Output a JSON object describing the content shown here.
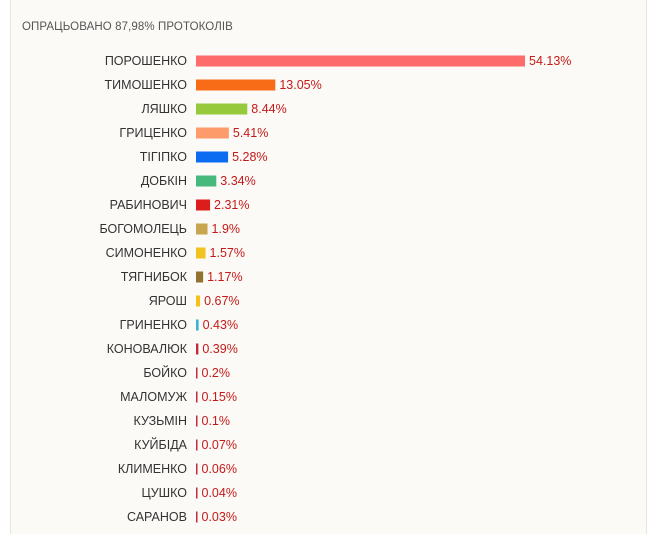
{
  "header": {
    "processed_text": "ОПРАЦЬОВАНО 87,98% ПРОТОКОЛІВ"
  },
  "chart_data": {
    "type": "bar",
    "orientation": "horizontal",
    "title": "",
    "xlabel": "",
    "ylabel": "",
    "categories": [
      "ПОРОШЕНКО",
      "ТИМОШЕНКО",
      "ЛЯШКО",
      "ГРИЦЕНКО",
      "ТІГІПКО",
      "ДОБКІН",
      "РАБИНОВИЧ",
      "БОГОМОЛЕЦЬ",
      "СИМОНЕНКО",
      "ТЯГНИБОК",
      "ЯРОШ",
      "ГРИНЕНКО",
      "КОНОВАЛЮК",
      "БОЙКО",
      "МАЛОМУЖ",
      "КУЗЬМІН",
      "КУЙБІДА",
      "КЛИМЕНКО",
      "ЦУШКО",
      "САРАНОВ"
    ],
    "values": [
      54.13,
      13.05,
      8.44,
      5.41,
      5.28,
      3.34,
      2.31,
      1.9,
      1.57,
      1.17,
      0.67,
      0.43,
      0.39,
      0.2,
      0.15,
      0.1,
      0.07,
      0.06,
      0.04,
      0.03
    ],
    "value_labels": [
      "54.13%",
      "13.05%",
      "8.44%",
      "5.41%",
      "5.28%",
      "3.34%",
      "2.31%",
      "1.9%",
      "1.57%",
      "1.17%",
      "0.67%",
      "0.43%",
      "0.39%",
      "0.2%",
      "0.15%",
      "0.1%",
      "0.07%",
      "0.06%",
      "0.04%",
      "0.03%"
    ],
    "colors": [
      "#fd6b6b",
      "#f96c17",
      "#97c93c",
      "#fd9b6a",
      "#0b6cf1",
      "#47b97d",
      "#dd1c1c",
      "#c8a650",
      "#f2c320",
      "#93712e",
      "#f6c119",
      "#37b4d4",
      "#c42b3a",
      "#c42b3a",
      "#c42b3a",
      "#c42b3a",
      "#c42b3a",
      "#c42b3a",
      "#c42b3a",
      "#c42b3a"
    ],
    "grid": false,
    "legend": "none"
  }
}
